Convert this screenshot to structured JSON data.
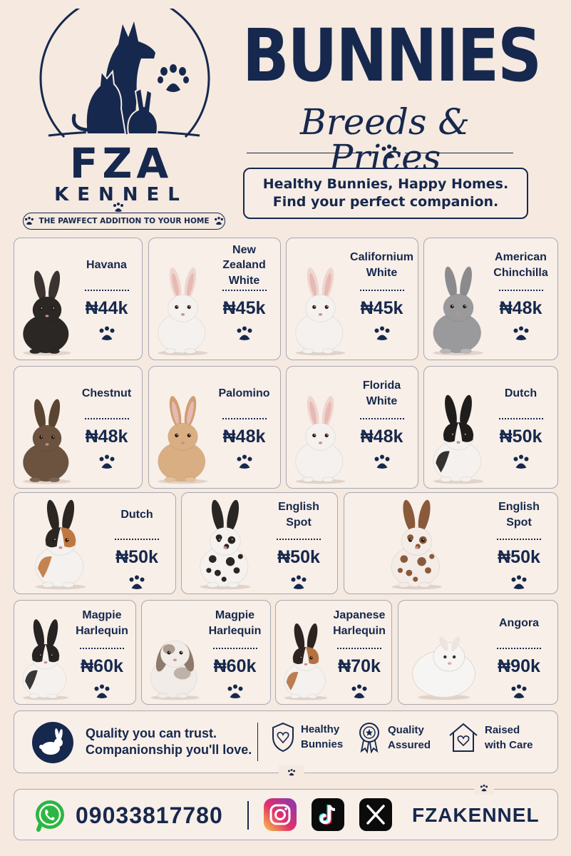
{
  "brand": {
    "name": "FZA",
    "sub": "KENNEL",
    "tagline": "THE PAWFECT ADDITION TO YOUR HOME"
  },
  "header": {
    "title": "BUNNIES",
    "subtitle": "Breeds & Prices",
    "slogan_line1": "Healthy Bunnies, Happy Homes.",
    "slogan_line2": "Find your perfect companion."
  },
  "breeds": [
    {
      "name": "Havana",
      "price": "₦44k",
      "coat": "black"
    },
    {
      "name": "New Zealand\nWhite",
      "price": "₦45k",
      "coat": "white"
    },
    {
      "name": "Californium\nWhite",
      "price": "₦45k",
      "coat": "white"
    },
    {
      "name": "American\nChinchilla",
      "price": "₦48k",
      "coat": "grey"
    },
    {
      "name": "Chestnut",
      "price": "₦48k",
      "coat": "chestnut"
    },
    {
      "name": "Palomino",
      "price": "₦48k",
      "coat": "tan"
    },
    {
      "name": "Florida\nWhite",
      "price": "₦48k",
      "coat": "white"
    },
    {
      "name": "Dutch",
      "price": "₦50k",
      "coat": "dutch-black"
    },
    {
      "name": "Dutch",
      "price": "₦50k",
      "coat": "dutch-tri"
    },
    {
      "name": "English\nSpot",
      "price": "₦50k",
      "coat": "spot-black"
    },
    {
      "name": "English\nSpot",
      "price": "₦50k",
      "coat": "spot-brown"
    },
    {
      "name": "Magpie\nHarlequin",
      "price": "₦60k",
      "coat": "magpie"
    },
    {
      "name": "Magpie\nHarlequin",
      "price": "₦60k",
      "coat": "lop"
    },
    {
      "name": "Japanese\nHarlequin",
      "price": "₦70k",
      "coat": "japanese"
    },
    {
      "name": "Angora",
      "price": "₦90k",
      "coat": "angora"
    }
  ],
  "features": {
    "quote_line1": "Quality you can trust.",
    "quote_line2": "Companionship you'll love.",
    "items": [
      {
        "line1": "Healthy",
        "line2": "Bunnies",
        "icon": "shield-heart-icon"
      },
      {
        "line1": "Quality",
        "line2": "Assured",
        "icon": "award-ribbon-icon"
      },
      {
        "line1": "Raised",
        "line2": "with Care",
        "icon": "house-heart-icon"
      }
    ]
  },
  "contact": {
    "phone": "09033817780",
    "handle": "FZAKENNEL",
    "icons": [
      "whatsapp-icon",
      "instagram-icon",
      "tiktok-icon",
      "x-icon"
    ]
  },
  "colors": {
    "navy": "#16284d",
    "background": "#f5e9e0",
    "card_border": "#a7a9b3"
  }
}
